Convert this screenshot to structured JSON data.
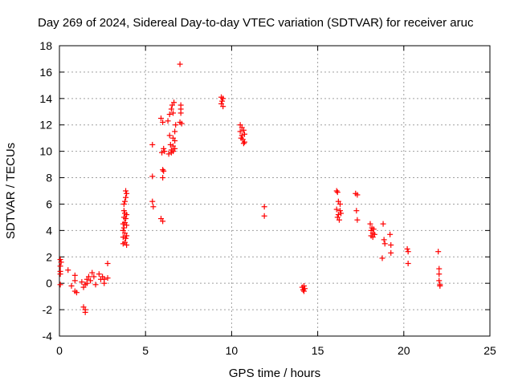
{
  "chart_data": {
    "type": "scatter",
    "title": "Day 269 of 2024, Sidereal Day-to-day VTEC variation (SDTVAR) for receiver aruc",
    "xlabel": "GPS time / hours",
    "ylabel": "SDTVAR / TECUs",
    "xlim": [
      0,
      25
    ],
    "ylim": [
      -4,
      18
    ],
    "xticks": [
      0,
      5,
      10,
      15,
      20,
      25
    ],
    "yticks": [
      -4,
      -2,
      0,
      2,
      4,
      6,
      8,
      10,
      12,
      14,
      16,
      18
    ],
    "xtick_labels": [
      "0",
      "5",
      "10",
      "15",
      "20",
      "25"
    ],
    "ytick_labels": [
      "-4",
      "-2",
      "0",
      "2",
      "4",
      "6",
      "8",
      "10",
      "12",
      "14",
      "16",
      "18"
    ],
    "grid": true,
    "marker": "plus",
    "color": "#ff0000",
    "series": [
      {
        "name": "SDTVAR",
        "x": [
          0.05,
          0.05,
          0.05,
          0.05,
          0.05,
          0.1,
          0.5,
          0.7,
          0.9,
          0.9,
          0.9,
          1.0,
          1.3,
          1.4,
          1.4,
          1.5,
          1.5,
          1.5,
          1.6,
          1.6,
          1.7,
          1.8,
          1.9,
          2.0,
          2.1,
          2.3,
          2.4,
          2.5,
          2.6,
          2.6,
          2.8,
          2.8,
          3.7,
          3.7,
          3.7,
          3.7,
          3.75,
          3.75,
          3.75,
          3.75,
          3.8,
          3.8,
          3.8,
          3.8,
          3.8,
          3.85,
          3.85,
          3.85,
          3.85,
          3.9,
          3.9,
          3.9,
          3.9,
          3.9,
          5.4,
          5.4,
          5.4,
          5.45,
          5.9,
          5.9,
          5.95,
          6.0,
          6.0,
          6.0,
          6.0,
          6.05,
          6.05,
          6.1,
          6.3,
          6.35,
          6.4,
          6.4,
          6.45,
          6.5,
          6.5,
          6.5,
          6.55,
          6.6,
          6.6,
          6.6,
          6.6,
          6.65,
          6.7,
          6.7,
          6.7,
          6.75,
          7.0,
          7.0,
          7.05,
          7.05,
          7.05,
          7.1,
          9.4,
          9.4,
          9.45,
          9.5,
          9.5,
          10.5,
          10.5,
          10.55,
          10.6,
          10.6,
          10.65,
          10.7,
          10.7,
          10.75,
          10.75,
          11.9,
          11.9,
          14.1,
          14.15,
          14.2,
          14.2,
          14.25,
          16.1,
          16.1,
          16.15,
          16.15,
          16.2,
          16.2,
          16.25,
          16.3,
          16.3,
          16.35,
          17.2,
          17.25,
          17.3,
          17.3,
          18.05,
          18.1,
          18.1,
          18.15,
          18.2,
          18.2,
          18.25,
          18.3,
          18.75,
          18.8,
          18.85,
          18.9,
          19.2,
          19.25,
          19.25,
          20.2,
          20.25,
          20.25,
          22.0,
          22.05,
          22.05,
          22.05,
          22.1,
          22.1
        ],
        "y": [
          1.8,
          1.3,
          0.9,
          0.7,
          -0.1,
          1.6,
          1.0,
          -0.2,
          0.6,
          0.2,
          -0.6,
          -0.7,
          0.1,
          -0.3,
          -1.8,
          -2.0,
          -2.2,
          -0.1,
          0.0,
          0.3,
          0.5,
          0.2,
          0.8,
          0.5,
          -0.1,
          0.7,
          0.3,
          0.5,
          0.0,
          0.3,
          0.4,
          1.5,
          3.0,
          3.5,
          4.0,
          4.5,
          5.0,
          5.5,
          6.0,
          4.2,
          3.1,
          3.8,
          4.6,
          5.3,
          6.2,
          3.4,
          4.9,
          6.5,
          7.0,
          2.9,
          3.6,
          4.4,
          5.2,
          6.8,
          10.5,
          8.1,
          6.2,
          5.8,
          12.5,
          4.9,
          9.9,
          8.6,
          8.0,
          4.7,
          12.2,
          10.2,
          8.5,
          10.0,
          12.3,
          9.8,
          12.8,
          11.2,
          10.5,
          13.2,
          10.1,
          9.9,
          13.5,
          11.0,
          10.4,
          10.0,
          12.9,
          13.7,
          10.8,
          10.2,
          11.5,
          12.0,
          16.6,
          12.2,
          13.5,
          13.2,
          12.9,
          12.1,
          14.1,
          13.6,
          13.8,
          13.4,
          14.0,
          12.0,
          11.5,
          11.0,
          11.8,
          11.2,
          10.9,
          10.6,
          11.6,
          11.3,
          10.7,
          5.8,
          5.1,
          -0.3,
          -0.5,
          -0.6,
          -0.2,
          -0.4,
          7.0,
          5.6,
          6.9,
          5.0,
          6.2,
          5.2,
          4.8,
          6.0,
          5.5,
          5.3,
          6.8,
          5.5,
          4.8,
          6.7,
          4.5,
          4.0,
          3.6,
          4.2,
          3.8,
          3.5,
          4.1,
          3.7,
          1.9,
          4.5,
          3.3,
          3.0,
          3.7,
          2.9,
          2.3,
          2.6,
          1.5,
          2.4,
          2.4,
          1.1,
          0.7,
          0.2,
          -0.1,
          -0.2
        ]
      }
    ]
  }
}
